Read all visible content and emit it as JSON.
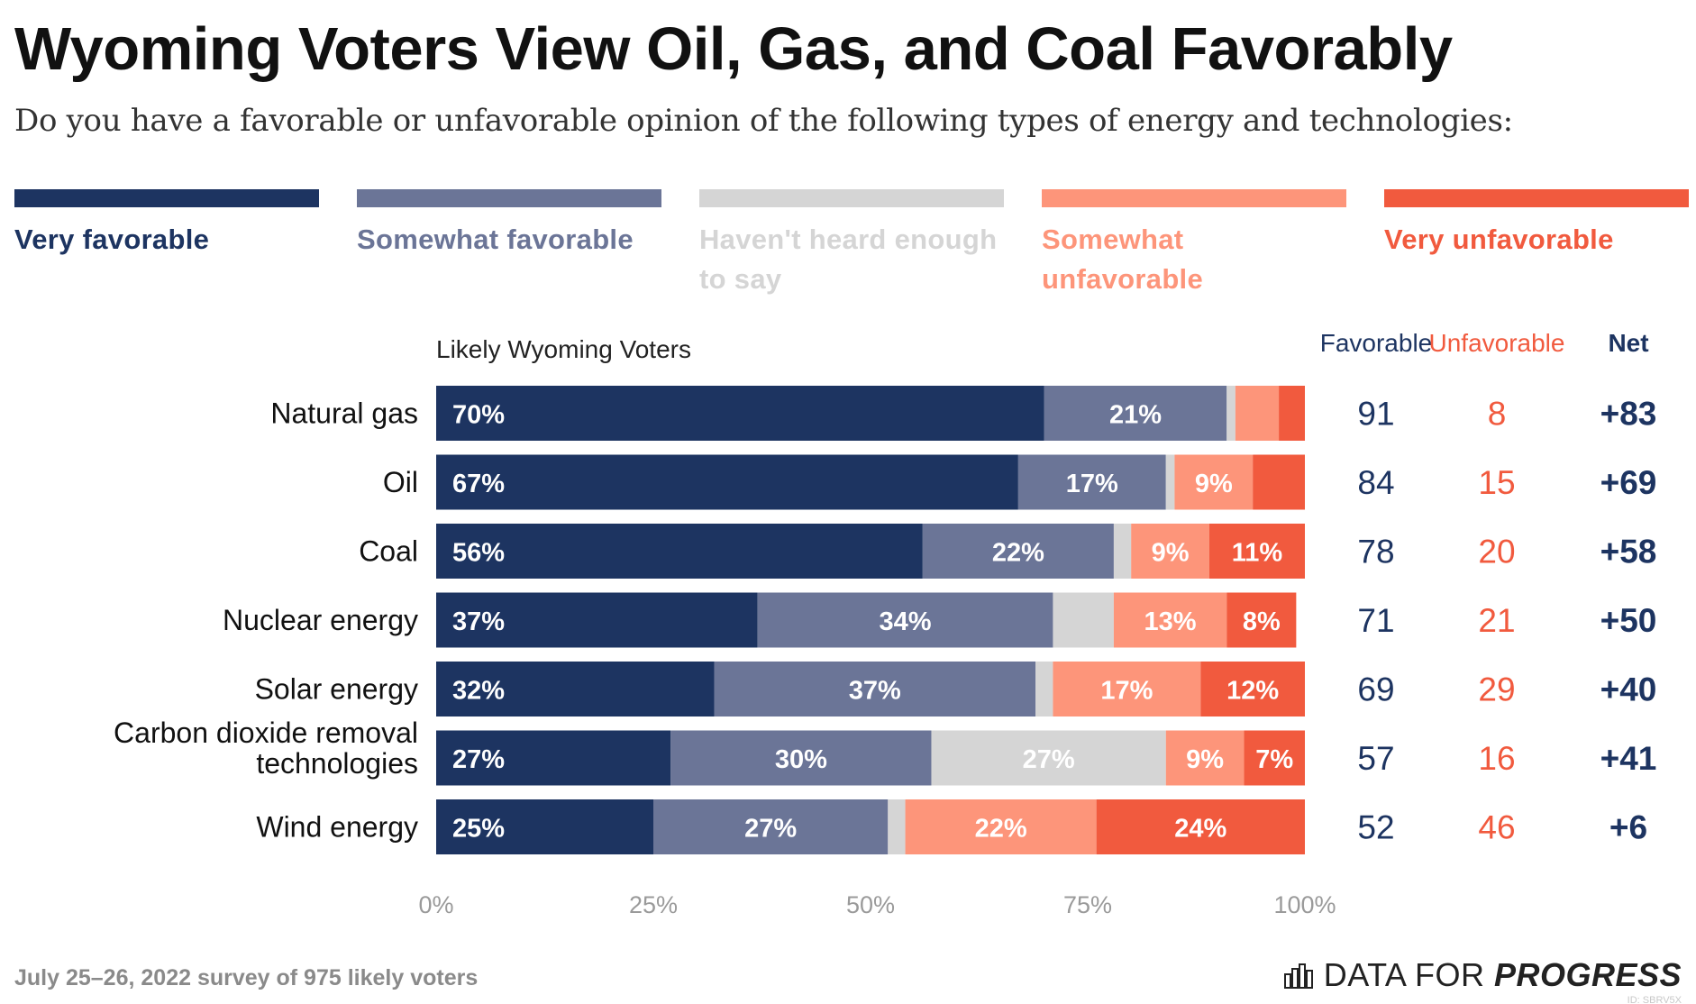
{
  "title": "Wyoming Voters View Oil, Gas, and Coal Favorably",
  "subtitle": "Do you have a favorable or unfavorable opinion of the following types of energy and technologies:",
  "footer_note": "July 25–26, 2022 survey of 975 likely voters",
  "logo": {
    "prefix": "DATA FOR ",
    "emphasis": "PROGRESS",
    "id": "ID: SBRV5X",
    "icon": "bar-chart-icon"
  },
  "legend": [
    {
      "label": "Very favorable",
      "color": "#1d3461"
    },
    {
      "label": "Somewhat favorable",
      "color": "#6b7597"
    },
    {
      "label": "Haven't heard enough to say",
      "color": "#d5d5d5"
    },
    {
      "label": "Somewhat unfavorable",
      "color": "#fd957a"
    },
    {
      "label": "Very unfavorable",
      "color": "#f15a3e"
    }
  ],
  "chart_data": {
    "type": "bar",
    "orientation": "horizontal",
    "stacked": true,
    "group_label": "Likely Wyoming Voters",
    "categories": [
      "Natural gas",
      "Oil",
      "Coal",
      "Nuclear energy",
      "Solar energy",
      "Carbon dioxide removal technologies",
      "Wind energy"
    ],
    "category_lines": [
      [
        "Natural gas"
      ],
      [
        "Oil"
      ],
      [
        "Coal"
      ],
      [
        "Nuclear energy"
      ],
      [
        "Solar energy"
      ],
      [
        "Carbon dioxide removal",
        "technologies"
      ],
      [
        "Wind energy"
      ]
    ],
    "series": [
      {
        "name": "Very favorable",
        "values": [
          70,
          67,
          56,
          37,
          32,
          27,
          25
        ],
        "labels": [
          "70%",
          "67%",
          "56%",
          "37%",
          "32%",
          "27%",
          "25%"
        ]
      },
      {
        "name": "Somewhat favorable",
        "values": [
          21,
          17,
          22,
          34,
          37,
          30,
          27
        ],
        "labels": [
          "21%",
          "17%",
          "22%",
          "34%",
          "37%",
          "30%",
          "27%"
        ]
      },
      {
        "name": "Haven't heard enough to say",
        "values": [
          1,
          1,
          2,
          7,
          2,
          27,
          2
        ],
        "labels": [
          "",
          "",
          "",
          "",
          "",
          "27%",
          ""
        ]
      },
      {
        "name": "Somewhat unfavorable",
        "values": [
          5,
          9,
          9,
          13,
          17,
          9,
          22
        ],
        "labels": [
          "",
          "9%",
          "9%",
          "13%",
          "17%",
          "9%",
          "22%"
        ]
      },
      {
        "name": "Very unfavorable",
        "values": [
          3,
          6,
          11,
          8,
          12,
          7,
          24
        ],
        "labels": [
          "",
          "",
          "11%",
          "8%",
          "12%",
          "7%",
          "24%"
        ]
      }
    ],
    "xlim": [
      0,
      100
    ],
    "xticks": [
      0,
      25,
      50,
      75,
      100
    ],
    "xtick_labels": [
      "0%",
      "25%",
      "50%",
      "75%",
      "100%"
    ],
    "summary": {
      "headers": {
        "favorable": "Favorable",
        "unfavorable": "Unfavorable",
        "net": "Net"
      },
      "favorable": [
        "91",
        "84",
        "78",
        "71",
        "69",
        "57",
        "52"
      ],
      "unfavorable": [
        "8",
        "15",
        "20",
        "21",
        "29",
        "16",
        "46"
      ],
      "net": [
        "+83",
        "+69",
        "+58",
        "+50",
        "+40",
        "+41",
        "+6"
      ]
    },
    "colors": {
      "favorable_header": "#1d3461",
      "unfavorable_header": "#f15a3e",
      "favorable_values": "#1d3461",
      "unfavorable_values": "#f15a3e",
      "net_values": "#1d3461",
      "label_light": "#ffffff"
    }
  }
}
